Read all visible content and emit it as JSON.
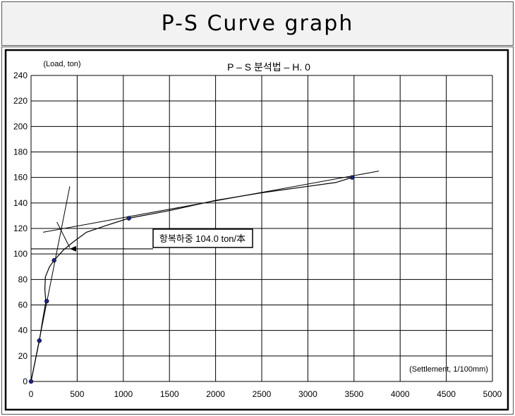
{
  "header": {
    "title": "P-S Curve graph"
  },
  "chart_data": {
    "type": "line",
    "title": "P – S 분석법 – H. 0",
    "ylabel": "(Load, ton)",
    "xlabel": "(Settlement, 1/100mm)",
    "xlim": [
      0,
      5000
    ],
    "ylim": [
      0,
      240
    ],
    "xticks": [
      0,
      500,
      1000,
      1500,
      2000,
      2500,
      3000,
      3500,
      4000,
      4500,
      5000
    ],
    "yticks": [
      0,
      20,
      40,
      60,
      80,
      100,
      120,
      140,
      160,
      180,
      200,
      220,
      240
    ],
    "grid": true,
    "series": [
      {
        "values": [
          {
            "x": 0,
            "y": 0
          },
          {
            "x": 90,
            "y": 32
          },
          {
            "x": 170,
            "y": 63
          },
          {
            "x": 250,
            "y": 95
          },
          {
            "x": 1060,
            "y": 128
          },
          {
            "x": 3480,
            "y": 160
          }
        ]
      }
    ],
    "curve": [
      [
        0,
        0
      ],
      [
        90,
        32
      ],
      [
        130,
        50
      ],
      [
        150,
        58
      ],
      [
        160,
        63
      ],
      [
        150,
        72
      ],
      [
        155,
        82
      ],
      [
        200,
        90
      ],
      [
        250,
        95
      ],
      [
        350,
        103
      ],
      [
        450,
        109
      ],
      [
        600,
        117
      ],
      [
        800,
        122
      ],
      [
        1060,
        128
      ],
      [
        1500,
        134
      ],
      [
        2000,
        142
      ],
      [
        2500,
        148
      ],
      [
        3000,
        153
      ],
      [
        3300,
        156
      ],
      [
        3480,
        160
      ]
    ],
    "tangent_lines": [
      {
        "from": [
          0,
          0
        ],
        "to": [
          420,
          153
        ]
      },
      {
        "from": [
          130,
          117
        ],
        "to": [
          3770,
          165
        ]
      },
      {
        "from": [
          280,
          125
        ],
        "to": [
          420,
          105
        ]
      }
    ],
    "reference_line": {
      "x0": 0,
      "x1": 440,
      "y": 104
    },
    "annotation": {
      "text": "항복하중 104.0 ton/本",
      "x": 1350,
      "y": 113,
      "arrow_to": {
        "x": 420,
        "y": 104
      }
    }
  }
}
